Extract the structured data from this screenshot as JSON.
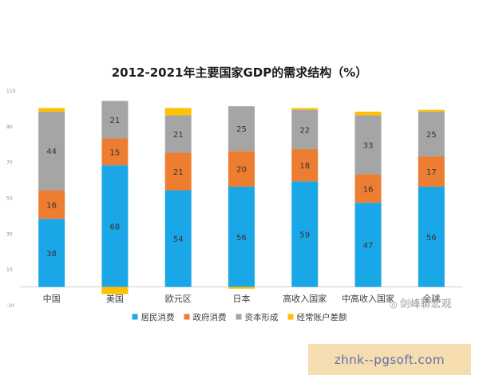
{
  "chart_data": {
    "type": "bar",
    "stacked": true,
    "title": "2012-2021年主要国家GDP的需求结构（%）",
    "categories": [
      "中国",
      "美国",
      "欧元区",
      "日本",
      "高收入国家",
      "中高收入国家",
      "全球"
    ],
    "ylim": [
      -10,
      110
    ],
    "yticks": [
      -10,
      10,
      30,
      50,
      70,
      90,
      110
    ],
    "grid": false,
    "legend_position": "bottom",
    "series": [
      {
        "name": "居民消费",
        "color": "#1aa7e8",
        "values": [
          38,
          68,
          54,
          56,
          59,
          47,
          56
        ],
        "labels": [
          "38",
          "68",
          "54",
          "56",
          "59",
          "47",
          "56"
        ]
      },
      {
        "name": "政府消费",
        "color": "#ed7d31",
        "values": [
          16,
          15,
          21,
          20,
          18,
          16,
          17
        ],
        "labels": [
          "16",
          "15",
          "21",
          "20",
          "18",
          "16",
          "17"
        ]
      },
      {
        "name": "资本形成",
        "color": "#a5a5a5",
        "values": [
          44,
          21,
          21,
          25,
          22,
          33,
          25
        ],
        "labels": [
          "44",
          "21",
          "21",
          "25",
          "22",
          "33",
          "25"
        ]
      },
      {
        "name": "经常账户差额",
        "color": "#ffc000",
        "values": [
          2,
          -4,
          4,
          -1,
          1,
          2,
          1
        ],
        "labels": [
          "",
          "",
          "",
          "",
          "",
          "",
          ""
        ]
      }
    ]
  },
  "watermark": {
    "icon": "wechat-icon",
    "text": "剑峰聊宏观"
  },
  "ad": {
    "text": "zhnk--pgsoft.com"
  }
}
